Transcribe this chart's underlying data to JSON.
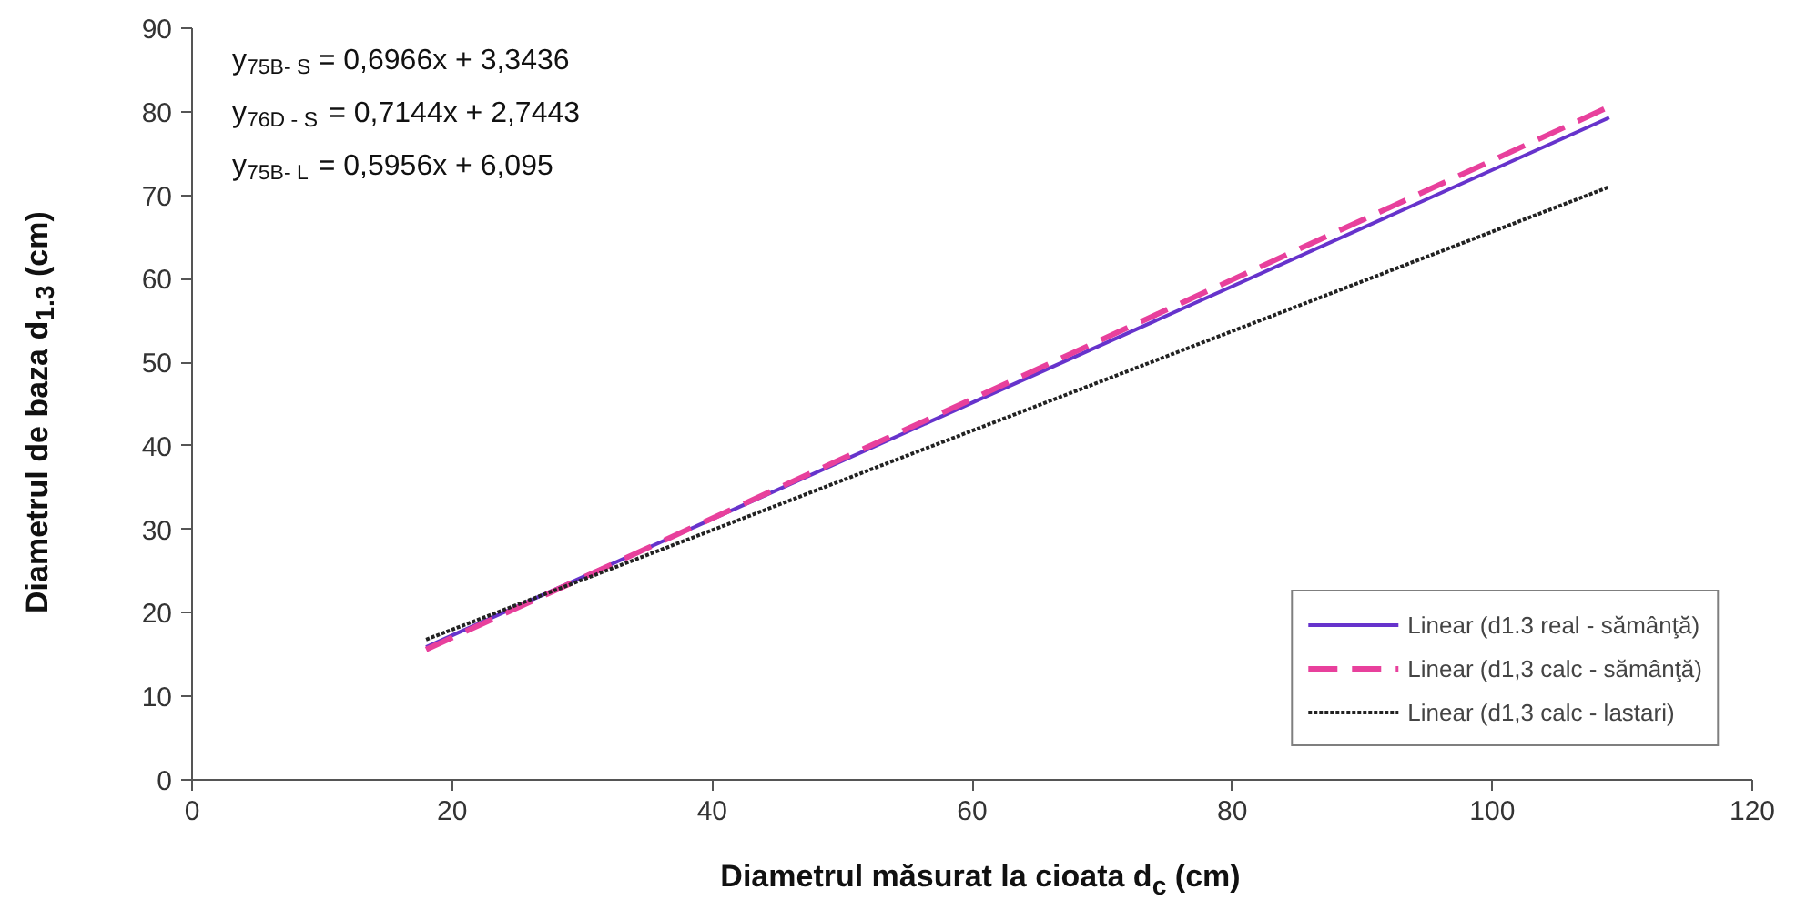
{
  "chart_data": {
    "type": "line",
    "xlabel": "Diametrul măsurat la cioata d$_{c}$ (cm)",
    "ylabel": "Diametrul de baza d$_{1.3}$ (cm)",
    "annotations": [
      "y$_{75B- S}$ = 0,6966x + 3,3436",
      "y$_{76D - S}$ = 0,7144x + 2,7443",
      "y$_{75B- L}$ = 0,5956x + 6,095"
    ],
    "x": [
      18,
      109
    ],
    "series": [
      {
        "name": "Linear (d1.3 real - sămânţă)",
        "color": "#6633cc",
        "line_style": "solid",
        "values": [
          15.9,
          79.3
        ]
      },
      {
        "name": "Linear (d1,3 calc - sămânţă)",
        "color": "#e8409c",
        "line_style": "dashed",
        "values": [
          15.6,
          80.6
        ]
      },
      {
        "name": "Linear (d1,3 calc - lastari)",
        "color": "#222222",
        "line_style": "dotted",
        "values": [
          16.8,
          71.0
        ]
      }
    ],
    "xlim": [
      0,
      120
    ],
    "xticks": [
      0,
      20,
      40,
      60,
      80,
      100,
      120
    ],
    "ylim": [
      0,
      90
    ],
    "yticks": [
      0,
      10,
      20,
      30,
      40,
      50,
      60,
      70,
      80,
      90
    ],
    "grid": false,
    "legend": "bottom right"
  }
}
